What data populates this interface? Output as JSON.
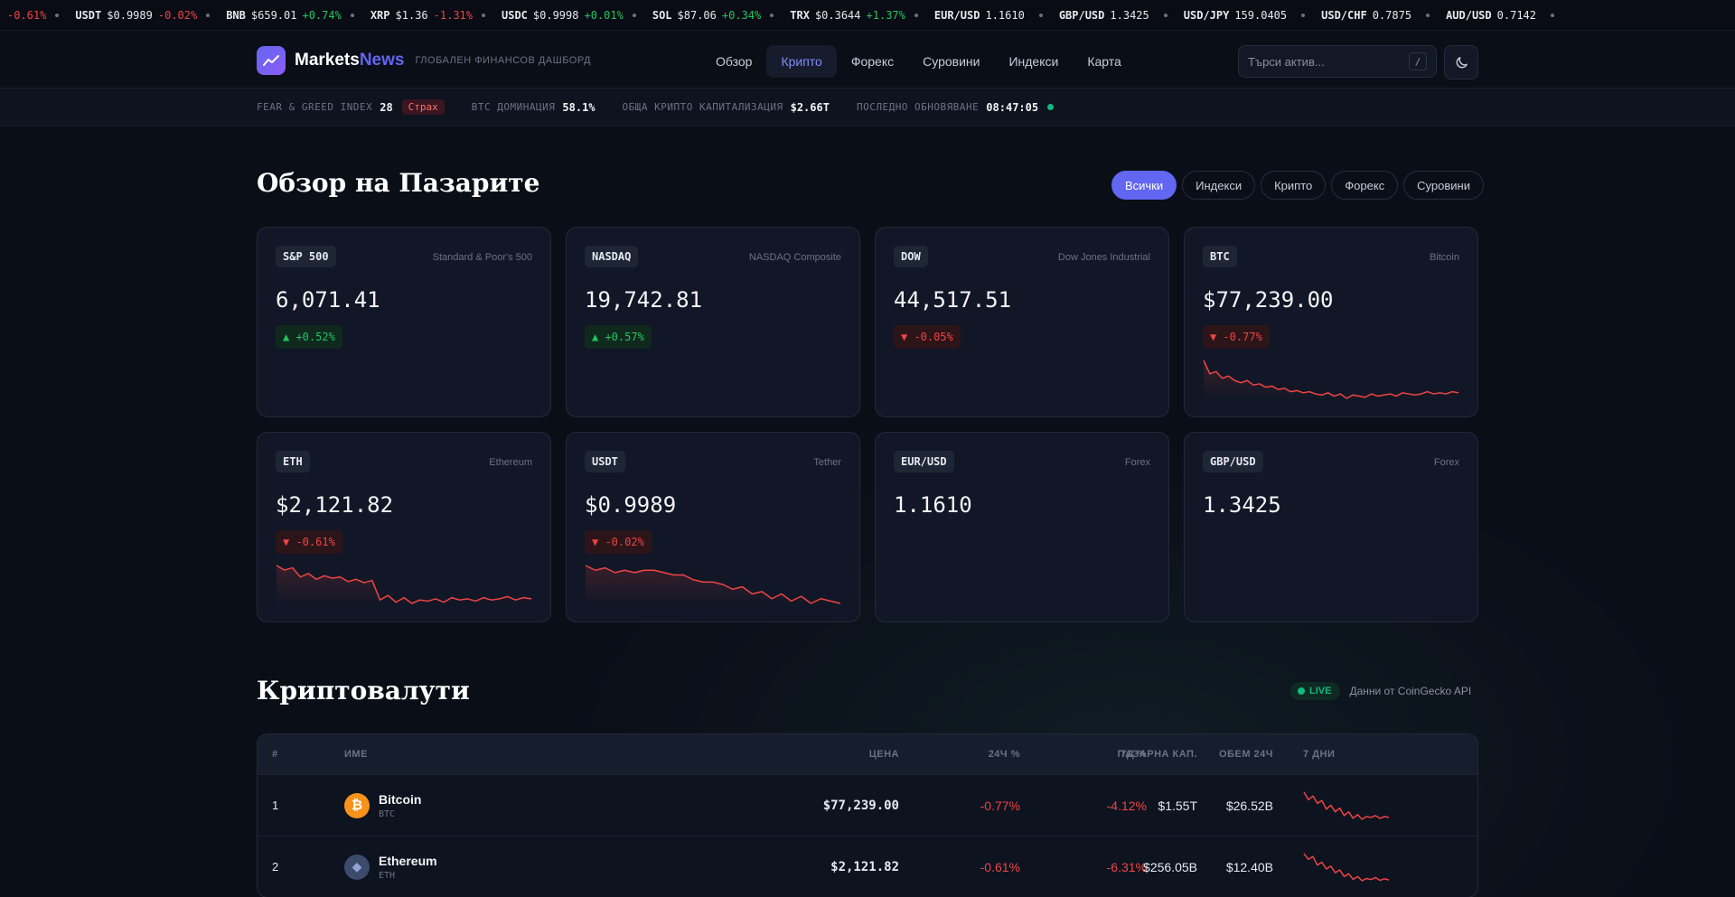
{
  "ticker": [
    {
      "symbol": "",
      "price": "",
      "change": "-0.61%",
      "dir": "down"
    },
    {
      "symbol": "USDT",
      "price": "$0.9989",
      "change": "-0.02%",
      "dir": "down"
    },
    {
      "symbol": "BNB",
      "price": "$659.01",
      "change": "+0.74%",
      "dir": "up"
    },
    {
      "symbol": "XRP",
      "price": "$1.36",
      "change": "-1.31%",
      "dir": "down"
    },
    {
      "symbol": "USDC",
      "price": "$0.9998",
      "change": "+0.01%",
      "dir": "up"
    },
    {
      "symbol": "SOL",
      "price": "$87.06",
      "change": "+0.34%",
      "dir": "up"
    },
    {
      "symbol": "TRX",
      "price": "$0.3644",
      "change": "+1.37%",
      "dir": "up"
    },
    {
      "symbol": "EUR/USD",
      "price": "1.1610",
      "change": "",
      "dir": ""
    },
    {
      "symbol": "GBP/USD",
      "price": "1.3425",
      "change": "",
      "dir": ""
    },
    {
      "symbol": "USD/JPY",
      "price": "159.0405",
      "change": "",
      "dir": ""
    },
    {
      "symbol": "USD/CHF",
      "price": "0.7875",
      "change": "",
      "dir": ""
    },
    {
      "symbol": "AUD/USD",
      "price": "0.7142",
      "change": "",
      "dir": ""
    }
  ],
  "brand": {
    "name_main": "Markets",
    "name_accent": "News",
    "tagline": "ГЛОБАЛЕН ФИНАНСОВ ДАШБОРД"
  },
  "nav": [
    "Обзор",
    "Крипто",
    "Форекс",
    "Суровини",
    "Индекси",
    "Карта"
  ],
  "nav_active": 1,
  "search": {
    "placeholder": "Търси актив...",
    "shortcut": "/"
  },
  "stats": {
    "fg_label": "FEAR & GREED INDEX",
    "fg_value": "28",
    "fg_badge": "Страх",
    "btc_dom_label": "BTC ДОМИНАЦИЯ",
    "btc_dom_value": "58.1%",
    "cap_label": "ОБЩА КРИПТО КАПИТАЛИЗАЦИЯ",
    "cap_value": "$2.66T",
    "updated_label": "ПОСЛЕДНО ОБНОВЯВАНЕ",
    "updated_value": "08:47:05"
  },
  "overview": {
    "title": "Обзор на Пазарите",
    "filters": [
      "Всички",
      "Индекси",
      "Крипто",
      "Форекс",
      "Суровини"
    ],
    "filter_active": 0,
    "cards": [
      {
        "tag": "S&P 500",
        "name": "Standard & Poor's 500",
        "price": "6,071.41",
        "change": "▲ +0.52%",
        "dir": "up",
        "spark": null
      },
      {
        "tag": "NASDAQ",
        "name": "NASDAQ Composite",
        "price": "19,742.81",
        "change": "▲ +0.57%",
        "dir": "up",
        "spark": null
      },
      {
        "tag": "DOW",
        "name": "Dow Jones Industrial",
        "price": "44,517.51",
        "change": "▼ -0.05%",
        "dir": "down",
        "spark": null
      },
      {
        "tag": "BTC",
        "name": "Bitcoin",
        "price": "$77,239.00",
        "change": "▼ -0.77%",
        "dir": "down",
        "spark": [
          78,
          77.4,
          77.5,
          77.2,
          77.3,
          77.1,
          77.0,
          77.1,
          76.9,
          76.95,
          76.8,
          76.85,
          76.7,
          76.75,
          76.6,
          76.65,
          76.55,
          76.6,
          76.5,
          76.45,
          76.55,
          76.4,
          76.5,
          76.3,
          76.45,
          76.4,
          76.35,
          76.5,
          76.4,
          76.45,
          76.5,
          76.4,
          76.55,
          76.5,
          76.45,
          76.5,
          76.6,
          76.5,
          76.55,
          76.5,
          76.6,
          76.55
        ]
      },
      {
        "tag": "ETH",
        "name": "Ethereum",
        "price": "$2,121.82",
        "change": "▼ -0.61%",
        "dir": "down",
        "spark": [
          2150,
          2146,
          2148,
          2140,
          2143,
          2138,
          2141,
          2139,
          2140,
          2136,
          2138,
          2135,
          2137,
          2120,
          2124,
          2118,
          2122,
          2117,
          2120,
          2119,
          2121,
          2118,
          2122,
          2120,
          2121,
          2119,
          2122,
          2120,
          2121,
          2123,
          2120,
          2122,
          2121
        ]
      },
      {
        "tag": "USDT",
        "name": "Tether",
        "price": "$0.9989",
        "change": "▼ -0.02%",
        "dir": "down",
        "spark": [
          1.0005,
          1.0003,
          1.0004,
          1.0002,
          1.0003,
          1.0002,
          1.0003,
          1.0003,
          1.0002,
          1.0001,
          1.0001,
          0.9999,
          0.9998,
          0.9998,
          0.9997,
          0.9995,
          0.9996,
          0.9993,
          0.9994,
          0.9991,
          0.9993,
          0.999,
          0.9992,
          0.9989,
          0.9991,
          0.999,
          0.9989
        ]
      },
      {
        "tag": "EUR/USD",
        "name": "Forex",
        "price": "1.1610",
        "change": "",
        "dir": "",
        "spark": null
      },
      {
        "tag": "GBP/USD",
        "name": "Forex",
        "price": "1.3425",
        "change": "",
        "dir": "",
        "spark": null
      }
    ]
  },
  "crypto": {
    "title": "Криптовалути",
    "live": "LIVE",
    "source": "Данни от CoinGecko API",
    "columns": {
      "rank": "#",
      "name": "ИМЕ",
      "price": "ЦЕНА",
      "ch24": "24Ч %",
      "ch7": "7Д %",
      "mcap": "ПАЗАРНА КАП.",
      "vol": "ОБЕМ 24Ч",
      "spark": "7 ДНИ"
    },
    "rows": [
      {
        "rank": "1",
        "name": "Bitcoin",
        "symbol": "BTC",
        "icon": "bitcoin-icon",
        "color": "#f7931a",
        "price": "$77,239.00",
        "ch24": "-0.77%",
        "ch7": "-4.12%",
        "mcap": "$1.55T",
        "vol": "$26.52B",
        "spark": [
          80,
          79.2,
          79.6,
          78.8,
          79.1,
          78.2,
          78.6,
          77.9,
          78.3,
          77.5,
          77.9,
          77.2,
          77.6,
          77.1,
          77.4,
          77.3,
          77.5,
          77.2,
          77.4,
          77.3
        ]
      },
      {
        "rank": "2",
        "name": "Ethereum",
        "symbol": "ETH",
        "icon": "ethereum-icon",
        "color": "#3c4a6b",
        "price": "$2,121.82",
        "ch24": "-0.61%",
        "ch7": "-6.31%",
        "mcap": "$256.05B",
        "vol": "$12.40B",
        "spark": [
          2260,
          2230,
          2245,
          2200,
          2215,
          2180,
          2195,
          2160,
          2175,
          2140,
          2155,
          2125,
          2140,
          2118,
          2130,
          2124,
          2135,
          2120,
          2128,
          2122
        ]
      }
    ]
  }
}
